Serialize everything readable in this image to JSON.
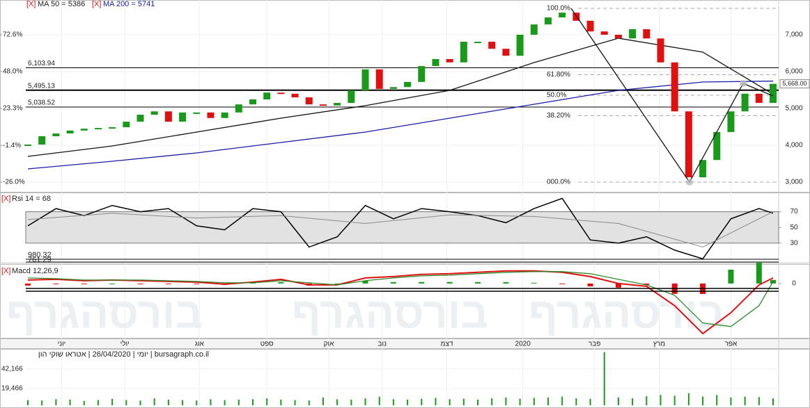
{
  "chart_data": [
    {
      "type": "candlestick",
      "xlim": [
        0,
        53
      ],
      "xticks": [
        {
          "value": 2.4,
          "label": "יוני"
        },
        {
          "value": 6.9,
          "label": "יולי"
        },
        {
          "value": 12.2,
          "label": "אוג"
        },
        {
          "value": 17,
          "label": "ספט"
        },
        {
          "value": 21.4,
          "label": "אוק"
        },
        {
          "value": 25.2,
          "label": "נוב"
        },
        {
          "value": 29.8,
          "label": "דצמ"
        },
        {
          "value": 35.2,
          "label": "2020"
        },
        {
          "value": 40.3,
          "label": "פבר"
        },
        {
          "value": 44.9,
          "label": "מרץ"
        },
        {
          "value": 50,
          "label": "אפר"
        }
      ],
      "ylim": [
        2755,
        7849
      ],
      "yticks": [
        {
          "value": 3000,
          "label": "3,000"
        },
        {
          "value": 4000,
          "label": "4,000"
        },
        {
          "value": 5000,
          "label": "5,000"
        },
        {
          "value": 6000,
          "label": "6,000"
        },
        {
          "value": 7000,
          "label": "7,000"
        }
      ],
      "y2lim": [
        -32.0,
        93.5
      ],
      "y2ticks": [
        {
          "value": -26,
          "label": "-26.0%"
        },
        {
          "value": -1.4,
          "label": "-1.4%"
        },
        {
          "value": 23.3,
          "label": "23.3%"
        },
        {
          "value": 48,
          "label": "48.0%"
        },
        {
          "value": 72.6,
          "label": "72.6%"
        }
      ],
      "remove_marker": "[X]",
      "values": [
        4020,
        4245,
        4320,
        4400,
        4450,
        4470,
        4490,
        4640,
        4830,
        4920,
        4640,
        4890,
        4890,
        4740,
        4890,
        5110,
        5245,
        5430,
        5400,
        5300,
        5110,
        5080,
        5150,
        5490,
        6060,
        5530,
        5580,
        5720,
        6150,
        6340,
        6250,
        6810,
        6810,
        6620,
        6430,
        7000,
        7280,
        7470,
        7600,
        7380,
        7090,
        7000,
        6900,
        7150,
        6900,
        6250,
        4920,
        3130,
        3600,
        4360,
        4920,
        5400,
        5150,
        5668
      ],
      "up_color": "#1a9a1a",
      "down_color": "#e01010",
      "last": {
        "value": 5668,
        "label": "5,668.00"
      },
      "series": [
        {
          "name": "MA 50 = 5386",
          "color": "#111111",
          "x": [
            0,
            6,
            12,
            18,
            24,
            30,
            36,
            42,
            48,
            53
          ],
          "values": [
            3698,
            3981,
            4358,
            4736,
            5075,
            5491,
            6245,
            6906,
            6528,
            5386
          ]
        },
        {
          "name": "MA 200 = 5741",
          "color": "#1a1aa8",
          "x": [
            0,
            6,
            12,
            18,
            24,
            30,
            36,
            42,
            48,
            53
          ],
          "values": [
            3358,
            3566,
            3792,
            4075,
            4358,
            4736,
            5113,
            5491,
            5717,
            5741
          ]
        }
      ],
      "levels": [
        {
          "value": 6103.94,
          "label": "6,103.94"
        },
        {
          "value": 5495.13,
          "label": "5,495.13"
        },
        {
          "value": 5038.52,
          "label": "5,038.52"
        }
      ],
      "fibonacci": {
        "low": 3000,
        "high": 7717,
        "levels": [
          {
            "value": 100,
            "label": "100.0%"
          },
          {
            "value": 61.8,
            "label": "61.80%"
          },
          {
            "value": 50,
            "label": "50.0%"
          },
          {
            "value": 38.2,
            "label": "38.20%"
          },
          {
            "value": 0,
            "label": "000.0%"
          }
        ]
      },
      "grid": true
    },
    {
      "type": "line",
      "title": "Rsi 14 = 68",
      "ylim": [
        5,
        90
      ],
      "yticks": [
        30,
        50,
        70
      ],
      "band": [
        30,
        70
      ],
      "series": [
        {
          "color": "#000000",
          "x": [
            0,
            2,
            4,
            6,
            8,
            10,
            12,
            14,
            16,
            18,
            20,
            22,
            24,
            26,
            28,
            30,
            32,
            34,
            36,
            38,
            40,
            42,
            44,
            46,
            48,
            50,
            52,
            53
          ],
          "values": [
            52,
            74,
            65,
            78,
            70,
            74,
            52,
            47,
            74,
            70,
            25,
            38,
            78,
            61,
            74,
            70,
            65,
            56,
            74,
            87,
            34,
            30,
            38,
            21,
            10,
            61,
            74,
            68
          ]
        },
        {
          "color": "#8a8a8a",
          "x": [
            0,
            6,
            12,
            18,
            24,
            30,
            36,
            42,
            48,
            53
          ],
          "values": [
            60,
            68,
            62,
            65,
            55,
            66,
            64,
            55,
            25,
            70
          ]
        }
      ],
      "annotations": [
        "980.32",
        "761.29"
      ]
    },
    {
      "type": "macd",
      "title": "Macd 12,26,9",
      "watermark": "בורסהגרף",
      "ylim": [
        -620,
        200
      ],
      "yticks": [
        0
      ],
      "series": [
        {
          "color": "#e01010",
          "x": [
            0,
            2,
            4,
            6,
            8,
            10,
            12,
            14,
            16,
            18,
            20,
            22,
            24,
            26,
            28,
            30,
            32,
            34,
            36,
            38,
            40,
            42,
            44,
            46,
            48,
            50,
            52,
            53
          ],
          "values": [
            40,
            48,
            32,
            40,
            32,
            24,
            16,
            -8,
            16,
            48,
            -16,
            -16,
            64,
            80,
            105,
            113,
            129,
            145,
            145,
            129,
            80,
            0,
            -32,
            -257,
            -579,
            -338,
            -16,
            64
          ]
        },
        {
          "color": "#2a8a2a",
          "x": [
            0,
            2,
            4,
            6,
            8,
            10,
            12,
            14,
            16,
            18,
            20,
            22,
            24,
            26,
            28,
            30,
            32,
            34,
            36,
            38,
            40,
            42,
            44,
            46,
            48,
            50,
            52,
            53
          ],
          "values": [
            64,
            56,
            40,
            40,
            40,
            32,
            24,
            8,
            8,
            32,
            8,
            -16,
            32,
            64,
            88,
            96,
            113,
            129,
            137,
            137,
            113,
            48,
            -16,
            -137,
            -458,
            -498,
            -257,
            24
          ]
        }
      ],
      "histogram": {
        "x": [
          0,
          2,
          4,
          6,
          8,
          10,
          12,
          14,
          16,
          18,
          20,
          22,
          24,
          26,
          28,
          30,
          32,
          34,
          36,
          38,
          40,
          42,
          44,
          46,
          48,
          50,
          52,
          53
        ],
        "values": [
          -24,
          -8,
          -8,
          0,
          -8,
          -8,
          -8,
          -16,
          8,
          16,
          -24,
          0,
          32,
          16,
          17,
          17,
          16,
          16,
          8,
          -8,
          -33,
          -48,
          -16,
          -120,
          -121,
          160,
          241,
          40
        ],
        "up_color": "#1a9a1a",
        "down_color": "#e01010"
      }
    },
    {
      "type": "bar",
      "title": "יומי | 26/04/2020 | אטראו שוקי הון | bursagraph.co.il",
      "ylim": [
        0,
        63000
      ],
      "yticks": [
        {
          "value": 19466,
          "label": "19,466"
        },
        {
          "value": 42166,
          "label": "42,166"
        }
      ],
      "values": [
        6000,
        5500,
        7000,
        6500,
        5000,
        6000,
        7500,
        6000,
        5500,
        8000,
        6500,
        6000,
        5500,
        7000,
        6000,
        6500,
        7000,
        8000,
        6500,
        6000,
        5500,
        9000,
        7000,
        6500,
        8000,
        10000,
        7000,
        6500,
        7500,
        8500,
        7000,
        7500,
        6500,
        8000,
        9000,
        7500,
        8500,
        9000,
        10000,
        8000,
        7500,
        61600,
        9000,
        8000,
        10500,
        12000,
        11000,
        14000,
        10000,
        12000,
        9000,
        10000,
        9500,
        8000
      ],
      "color": "#1a9a1a"
    }
  ]
}
